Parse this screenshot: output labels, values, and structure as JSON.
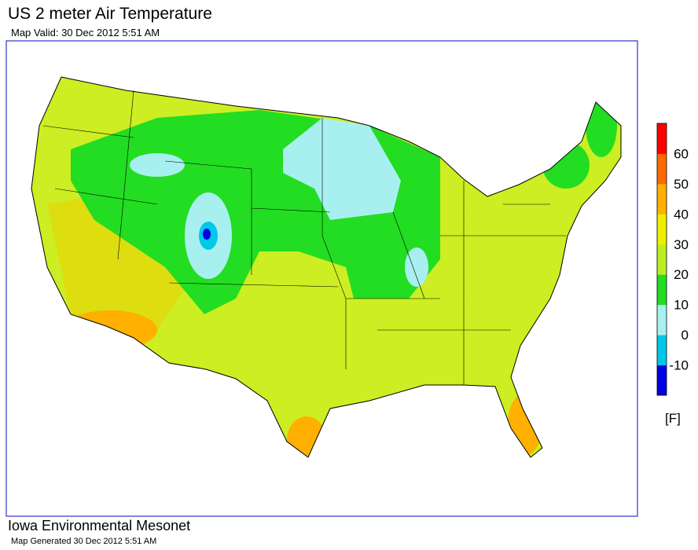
{
  "header": {
    "title": "US 2 meter Air Temperature",
    "subtitle": "Map Valid: 30 Dec 2012 5:51 AM"
  },
  "legend": {
    "ticks": [
      -10,
      0,
      10,
      20,
      30,
      40,
      50,
      60
    ],
    "range": [
      -20,
      70
    ],
    "unit": "[F]",
    "colors": [
      "#0000e0",
      "#00c8e8",
      "#a8f0f0",
      "#22dd22",
      "#bbee22",
      "#eeee00",
      "#ffb000",
      "#ff6a00",
      "#ff0000"
    ]
  },
  "footer": {
    "organization": "Iowa Environmental Mesonet",
    "generated": "Map Generated 30 Dec 2012 5:51 AM"
  }
}
